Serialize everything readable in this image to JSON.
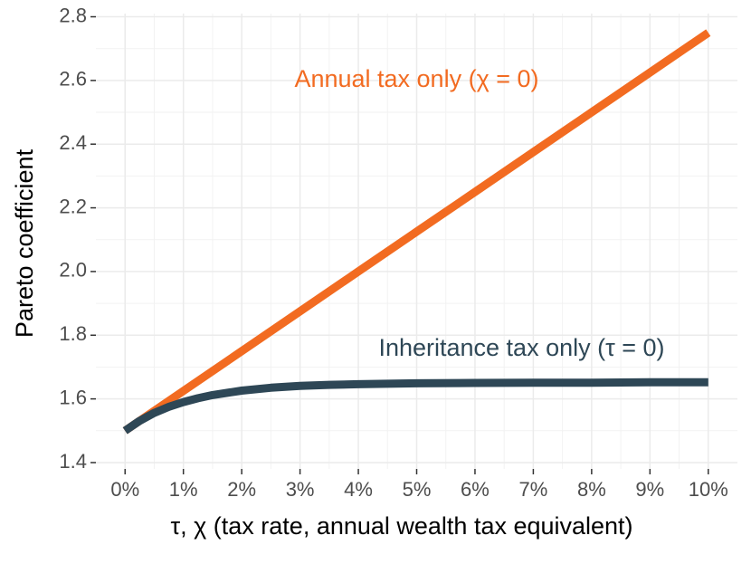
{
  "chart_data": {
    "type": "line",
    "title": "",
    "xlabel": "τ, χ (tax rate, annual wealth tax equivalent)",
    "ylabel": "Pareto coefficient",
    "xlim": [
      -0.5,
      10.5
    ],
    "ylim": [
      1.38,
      2.81
    ],
    "x_ticks": [
      0,
      1,
      2,
      3,
      4,
      5,
      6,
      7,
      8,
      9,
      10
    ],
    "x_tick_labels": [
      "0%",
      "1%",
      "2%",
      "3%",
      "4%",
      "5%",
      "6%",
      "7%",
      "8%",
      "9%",
      "10%"
    ],
    "y_ticks": [
      1.4,
      1.6,
      1.8,
      2.0,
      2.2,
      2.4,
      2.6,
      2.8
    ],
    "y_tick_labels": [
      "1.4",
      "1.6",
      "1.8",
      "2.0",
      "2.2",
      "2.4",
      "2.6",
      "2.8"
    ],
    "grid": true,
    "background": "#ffffff",
    "series": [
      {
        "color": "#f26b21",
        "x": [
          0,
          1,
          2,
          3,
          4,
          5,
          6,
          7,
          8,
          9,
          10
        ],
        "y": [
          1.5,
          1.625,
          1.75,
          1.875,
          2.0,
          2.125,
          2.25,
          2.375,
          2.5,
          2.625,
          2.75
        ]
      },
      {
        "color": "#2e4756",
        "x": [
          0,
          0.25,
          0.5,
          0.75,
          1,
          1.25,
          1.5,
          2,
          2.5,
          3,
          3.5,
          4,
          5,
          6,
          7,
          8,
          9,
          10
        ],
        "y": [
          1.5,
          1.531,
          1.556,
          1.575,
          1.59,
          1.602,
          1.612,
          1.626,
          1.635,
          1.641,
          1.644,
          1.646,
          1.649,
          1.65,
          1.651,
          1.651,
          1.652,
          1.652
        ]
      }
    ],
    "annotations": [
      {
        "text": "Annual tax only (χ = 0)",
        "x": 5.0,
        "y": 2.6,
        "color": "#f26b21"
      },
      {
        "text": "Inheritance tax only (τ = 0)",
        "x": 6.8,
        "y": 1.755,
        "color": "#2e4756"
      }
    ]
  }
}
